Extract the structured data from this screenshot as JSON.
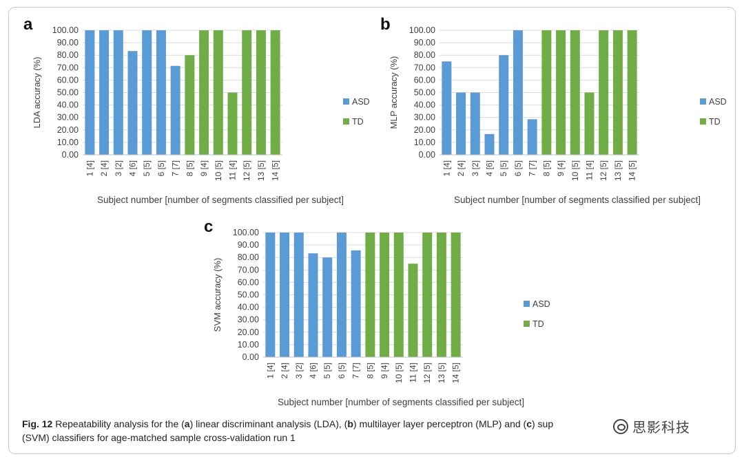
{
  "caption": {
    "fig_label": "Fig. 12",
    "text_a": " Repeatability analysis for the (",
    "a": "a",
    "text_b": ") linear discriminant analysis (LDA), (",
    "b": "b",
    "text_c": ") multilayer layer perceptron (MLP) and (",
    "c": "c",
    "text_d": ") sup",
    "text_e": "(SVM) classifiers for age-matched sample cross-validation run 1"
  },
  "watermark": "思影科技",
  "colors": {
    "ASD": "#5b9bd5",
    "TD": "#70ad47",
    "grid": "#d9d9d9",
    "text": "#404040"
  },
  "chart_data": [
    {
      "panel": "a",
      "type": "bar",
      "ylabel": "LDA accuracy (%)",
      "xlabel": "Subject number [number of segments classified per subject]",
      "ylim": [
        0,
        100
      ],
      "ytick_step": 10,
      "ytick_format": "0.00",
      "grid": true,
      "legend_position": "right",
      "legend": [
        "ASD",
        "TD"
      ],
      "categories": [
        "1 [4]",
        "2 [4]",
        "3 [2]",
        "4 [6]",
        "5 [5]",
        "6 [5]",
        "7 [7]",
        "8 [5]",
        "9 [4]",
        "10 [5]",
        "11 [4]",
        "12 [5]",
        "13 [5]",
        "14 [5]"
      ],
      "values": [
        100,
        100,
        100,
        83.33,
        100,
        100,
        71.43,
        80,
        100,
        100,
        50,
        100,
        100,
        100
      ],
      "groups": [
        "ASD",
        "ASD",
        "ASD",
        "ASD",
        "ASD",
        "ASD",
        "ASD",
        "TD",
        "TD",
        "TD",
        "TD",
        "TD",
        "TD",
        "TD"
      ]
    },
    {
      "panel": "b",
      "type": "bar",
      "ylabel": "MLP accuracy (%)",
      "xlabel": "Subject number [number of segments classified per subject]",
      "ylim": [
        0,
        100
      ],
      "ytick_step": 10,
      "ytick_format": "0.00",
      "grid": true,
      "legend_position": "right",
      "legend": [
        "ASD",
        "TD"
      ],
      "categories": [
        "1 [4]",
        "2 [4]",
        "3 [2]",
        "4 [6]",
        "5 [5]",
        "6 [5]",
        "7 [7]",
        "8 [5]",
        "9 [4]",
        "10 [5]",
        "11 [4]",
        "12 [5]",
        "13 [5]",
        "14 [5]"
      ],
      "values": [
        75,
        50,
        50,
        16.67,
        80,
        100,
        28.57,
        100,
        100,
        100,
        50,
        100,
        100,
        100
      ],
      "groups": [
        "ASD",
        "ASD",
        "ASD",
        "ASD",
        "ASD",
        "ASD",
        "ASD",
        "TD",
        "TD",
        "TD",
        "TD",
        "TD",
        "TD",
        "TD"
      ]
    },
    {
      "panel": "c",
      "type": "bar",
      "ylabel": "SVM accuracy (%)",
      "xlabel": "Subject number [number of segments classified per subject]",
      "ylim": [
        0,
        100
      ],
      "ytick_step": 10,
      "ytick_format": "0.00",
      "grid": true,
      "legend_position": "right",
      "legend": [
        "ASD",
        "TD"
      ],
      "categories": [
        "1 [4]",
        "2 [4]",
        "3 [2]",
        "4 [6]",
        "5 [5]",
        "6 [5]",
        "7 [7]",
        "8 [5]",
        "9 [4]",
        "10 [5]",
        "11 [4]",
        "12 [5]",
        "13 [5]",
        "14 [5]"
      ],
      "values": [
        100,
        100,
        100,
        83.33,
        80,
        100,
        85.71,
        100,
        100,
        100,
        75,
        100,
        100,
        100
      ],
      "groups": [
        "ASD",
        "ASD",
        "ASD",
        "ASD",
        "ASD",
        "ASD",
        "ASD",
        "TD",
        "TD",
        "TD",
        "TD",
        "TD",
        "TD",
        "TD"
      ]
    }
  ]
}
